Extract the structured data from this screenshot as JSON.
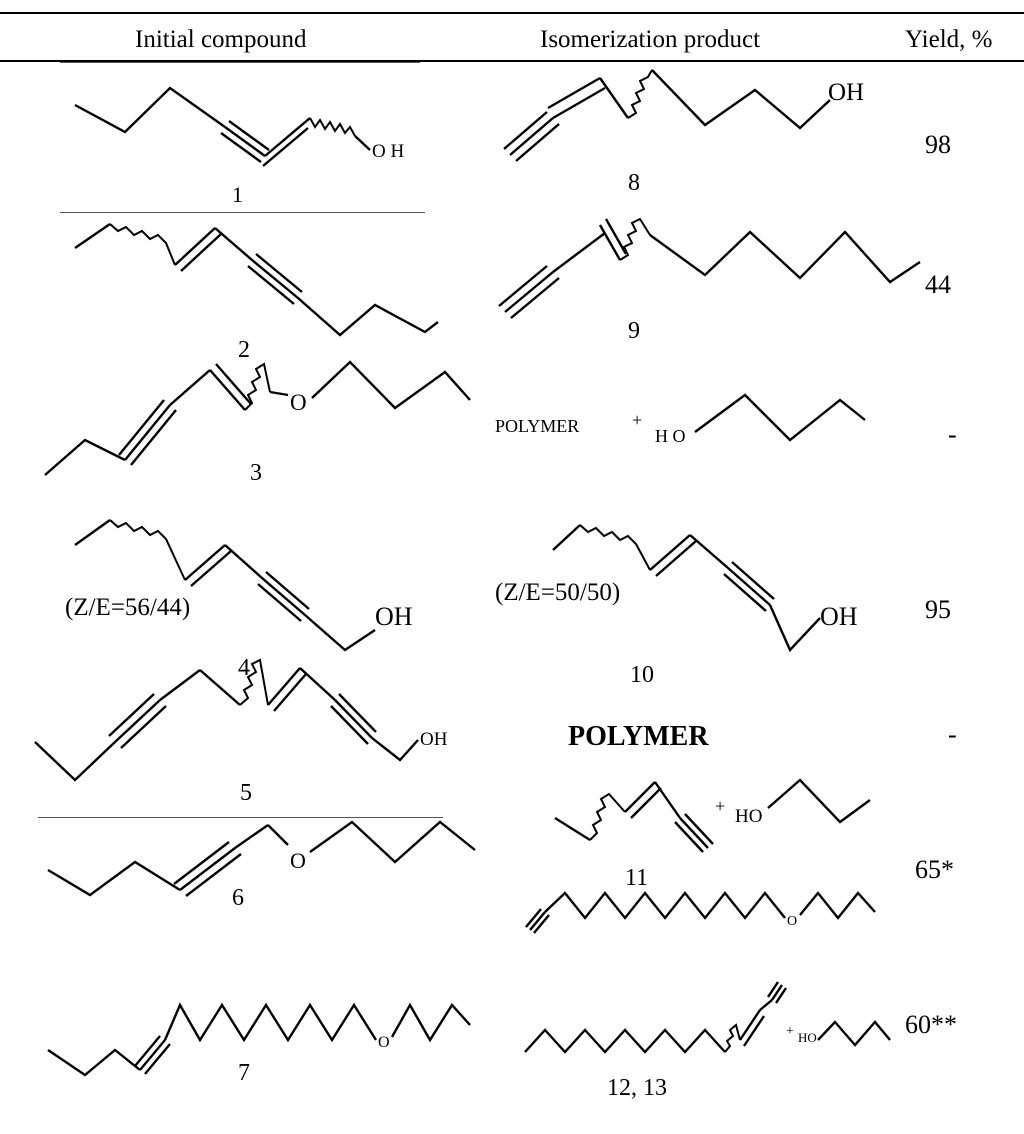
{
  "table": {
    "headers": {
      "initial": "Initial compound",
      "product": "Isomerization product",
      "yield": "Yield, %"
    },
    "rows": [
      {
        "compound_no": "1",
        "product_no": "8",
        "yield": "98"
      },
      {
        "compound_no": "2",
        "product_no": "9",
        "yield": "44"
      },
      {
        "compound_no": "3",
        "product_label": "POLYMER",
        "plus": "+",
        "product_group": "H O",
        "yield": "-"
      },
      {
        "compound_no": "4",
        "compound_ratio": "(Z/E=56/44)",
        "compound_group": "OH",
        "product_no": "10",
        "product_ratio": "(Z/E=50/50)",
        "product_group": "OH",
        "yield": "95"
      },
      {
        "compound_no": "5",
        "compound_group": "OH",
        "product_label": "POLYMER",
        "yield": "-"
      },
      {
        "compound_no": "6",
        "compound_group": "O",
        "product_no": "11",
        "plus": "+",
        "product_group": "HO",
        "yield": "65*"
      },
      {
        "compound_no": "7",
        "compound_group": "O",
        "product_no": "12, 13",
        "product_group_top": "O",
        "plus": "+",
        "product_group": "HO",
        "yield": "60**"
      }
    ],
    "row1_compound_group": "O H",
    "row1_product_group": "OH",
    "row3_compound_group": "O"
  }
}
